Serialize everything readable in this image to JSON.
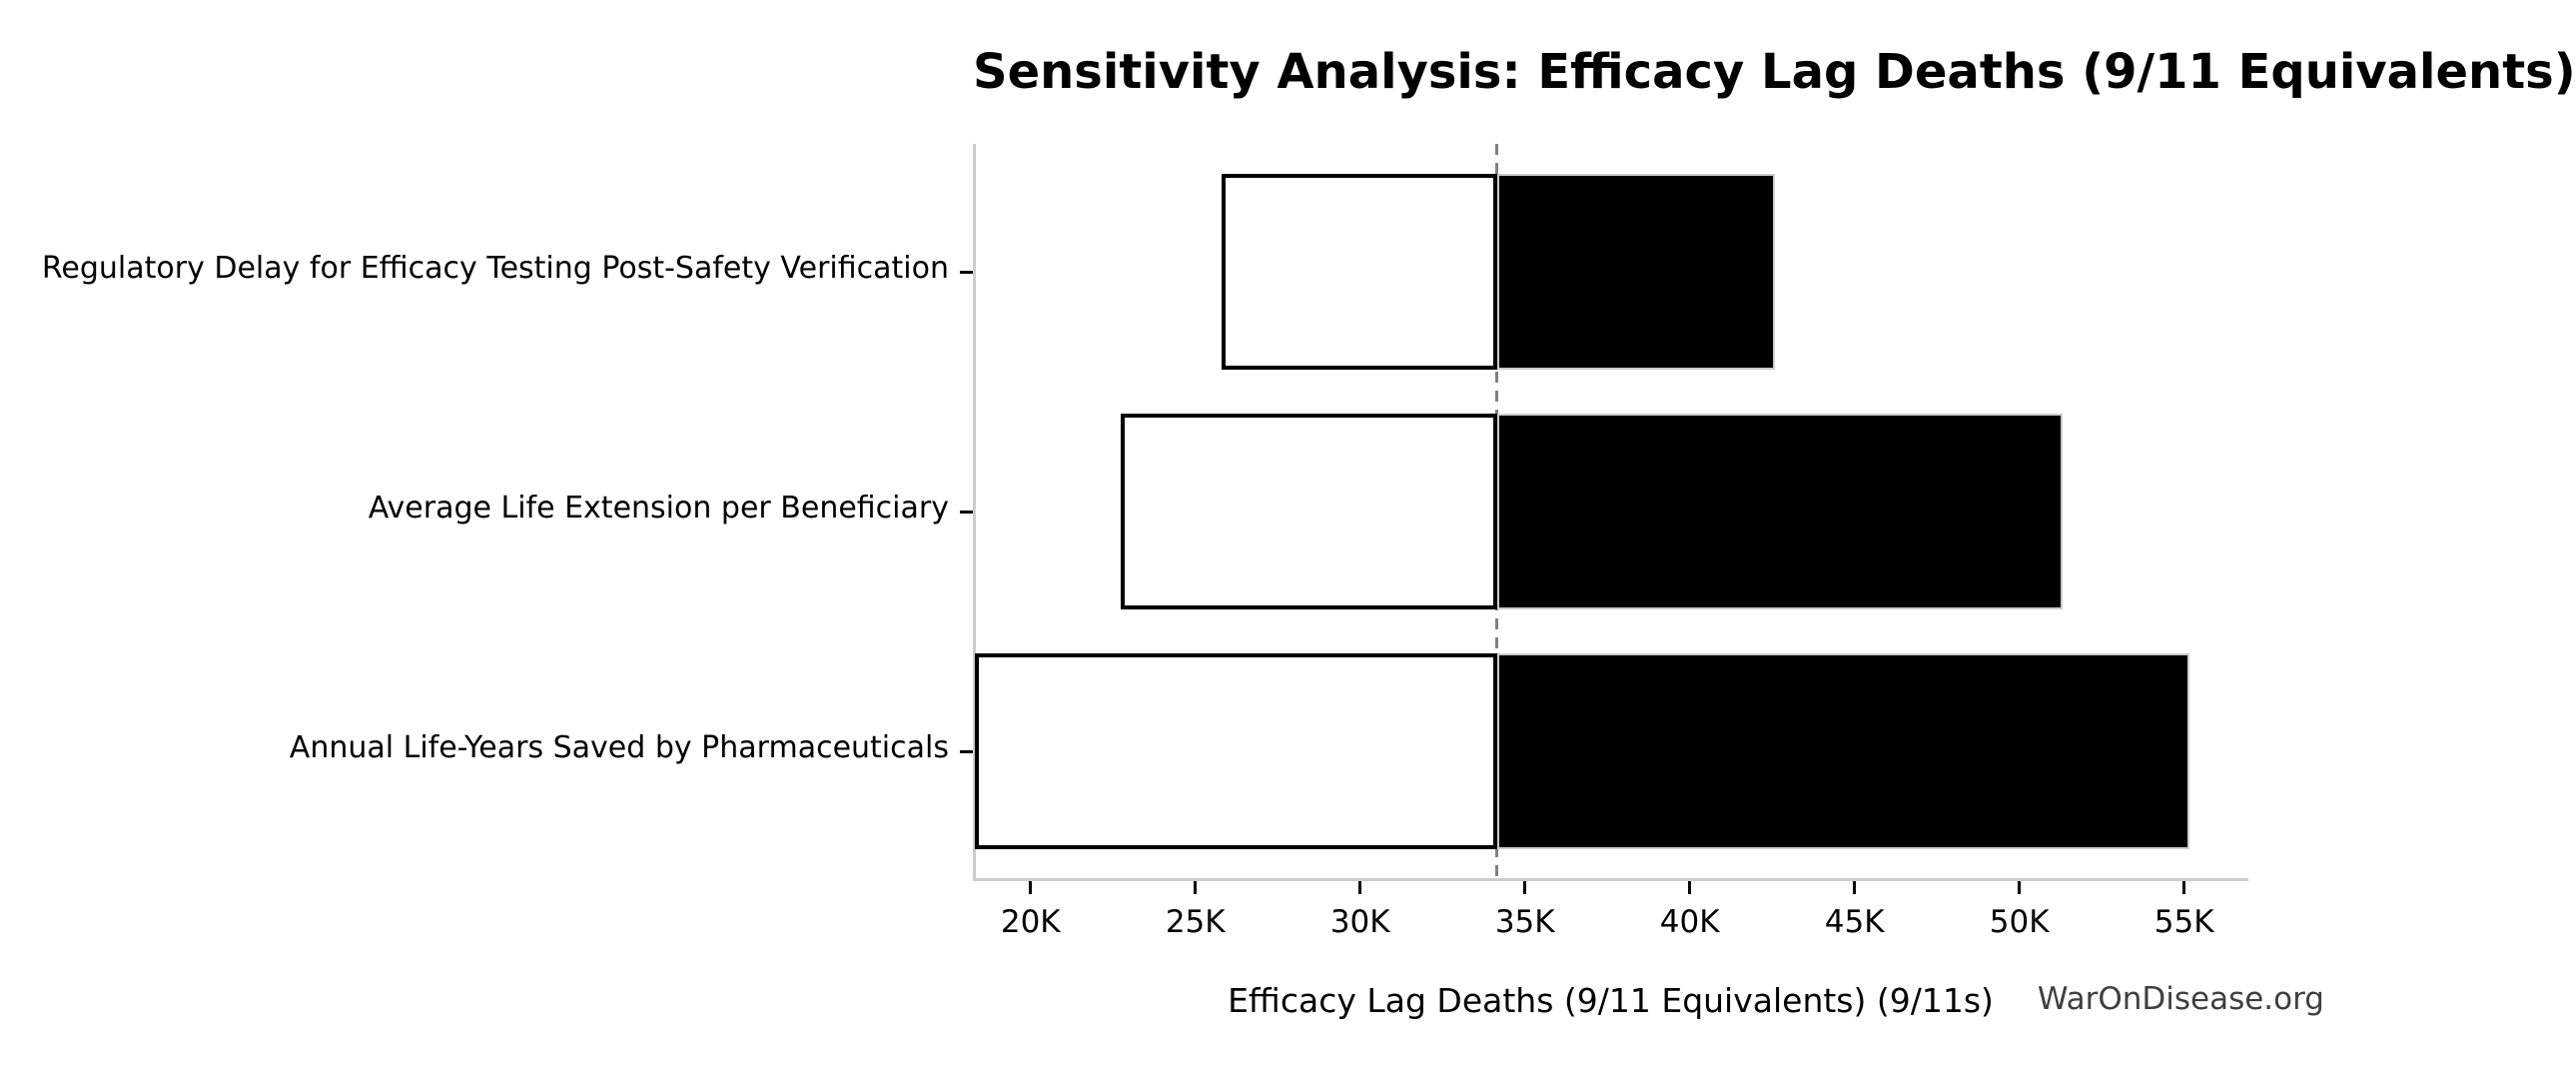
{
  "chart_data": {
    "type": "bar",
    "subtype": "tornado-horizontal",
    "title": "Sensitivity Analysis: Efficacy Lag Deaths (9/11 Equivalents)",
    "xlabel": "Efficacy Lag Deaths (9/11 Equivalents) (9/11s)",
    "watermark": "WarOnDisease.org",
    "baseline": 34150,
    "xlim": [
      18250,
      56950
    ],
    "grid": false,
    "legend": "none",
    "xticks": [
      {
        "value": 20000,
        "label": "20K"
      },
      {
        "value": 25000,
        "label": "25K"
      },
      {
        "value": 30000,
        "label": "30K"
      },
      {
        "value": 35000,
        "label": "35K"
      },
      {
        "value": 40000,
        "label": "40K"
      },
      {
        "value": 45000,
        "label": "45K"
      },
      {
        "value": 50000,
        "label": "50K"
      },
      {
        "value": 55000,
        "label": "55K"
      }
    ],
    "bars": [
      {
        "label": "Regulatory Delay for Efficacy Testing Post-Safety Verification",
        "low": 25800,
        "high": 42600
      },
      {
        "label": "Average Life Extension per Beneficiary",
        "low": 22750,
        "high": 51300
      },
      {
        "label": "Annual Life-Years Saved by Pharmaceuticals",
        "low": 18300,
        "high": 55150
      }
    ],
    "colors": {
      "low_fill": "#ffffff",
      "low_edge": "#000000",
      "high_fill": "#000000",
      "high_edge": "#cccccc",
      "baseline_line": "#808080",
      "spine": "#cccccc",
      "tick": "#000000",
      "text": "#000000",
      "watermark": "#3f3f3f",
      "background": "#ffffff"
    }
  }
}
